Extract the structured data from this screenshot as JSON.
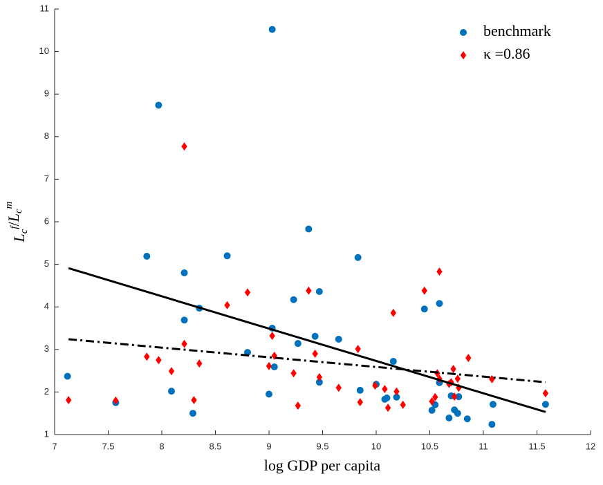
{
  "chart_data": {
    "type": "scatter",
    "xlabel": "log GDP per capita",
    "ylabel": "L_c^f/L_c^m",
    "xlim": [
      7,
      12
    ],
    "ylim": [
      1,
      11
    ],
    "xticks": [
      7,
      7.5,
      8,
      8.5,
      9,
      9.5,
      10,
      10.5,
      11,
      11.5,
      12
    ],
    "yticks": [
      1,
      2,
      3,
      4,
      5,
      6,
      7,
      8,
      9,
      10,
      11
    ],
    "grid": false,
    "legend": "upper right",
    "series": [
      {
        "name": "benchmark",
        "color": "#0072bd",
        "marker": "circle",
        "x": [
          7.12,
          7.57,
          7.97,
          7.86,
          8.21,
          8.21,
          8.09,
          8.29,
          8.35,
          8.61,
          8.8,
          9.0,
          9.03,
          9.05,
          9.03,
          9.23,
          9.27,
          9.37,
          9.43,
          9.47,
          9.47,
          9.65,
          9.83,
          9.85,
          10.0,
          10.08,
          10.1,
          10.16,
          10.19,
          10.45,
          10.52,
          10.55,
          10.59,
          10.59,
          10.68,
          10.7,
          10.73,
          10.76,
          10.77,
          10.85,
          11.08,
          11.09,
          11.58
        ],
        "values": [
          2.37,
          1.75,
          8.74,
          5.19,
          4.8,
          3.69,
          2.02,
          1.5,
          3.97,
          5.2,
          2.93,
          1.95,
          3.5,
          2.59,
          10.52,
          4.17,
          3.14,
          5.83,
          3.31,
          4.36,
          2.23,
          3.24,
          5.16,
          2.04,
          2.18,
          1.83,
          1.86,
          2.72,
          1.88,
          3.95,
          1.57,
          1.7,
          2.22,
          4.08,
          1.39,
          1.91,
          1.58,
          1.5,
          1.89,
          1.37,
          1.24,
          1.71,
          1.71
        ]
      },
      {
        "name": "κ =0.86",
        "color": "#ff0000",
        "marker": "diamond",
        "x": [
          7.13,
          7.57,
          7.86,
          7.97,
          8.09,
          8.21,
          8.21,
          8.3,
          8.35,
          8.61,
          8.8,
          9.0,
          9.03,
          9.05,
          9.23,
          9.27,
          9.37,
          9.43,
          9.47,
          9.65,
          9.83,
          9.85,
          9.99,
          10.08,
          10.11,
          10.16,
          10.19,
          10.25,
          10.45,
          10.52,
          10.55,
          10.57,
          10.59,
          10.59,
          10.68,
          10.7,
          10.72,
          10.73,
          10.76,
          10.77,
          10.86,
          11.08,
          11.58
        ],
        "values": [
          1.81,
          1.8,
          2.83,
          2.75,
          2.49,
          7.77,
          3.13,
          1.81,
          2.67,
          4.04,
          4.34,
          2.61,
          3.32,
          2.85,
          2.44,
          1.68,
          4.38,
          2.9,
          2.35,
          2.1,
          3.01,
          1.76,
          2.15,
          2.07,
          1.63,
          3.86,
          2.01,
          1.7,
          4.38,
          1.78,
          1.88,
          2.44,
          2.31,
          4.83,
          2.19,
          2.23,
          2.54,
          1.89,
          2.31,
          2.1,
          2.8,
          2.3,
          1.97
        ]
      }
    ],
    "fit_lines": [
      {
        "style": "solid",
        "color": "#000000",
        "x": [
          7.13,
          11.58
        ],
        "values": [
          4.91,
          1.53
        ]
      },
      {
        "style": "dashdot",
        "color": "#000000",
        "x": [
          7.13,
          11.58
        ],
        "values": [
          3.24,
          2.23
        ]
      }
    ]
  }
}
